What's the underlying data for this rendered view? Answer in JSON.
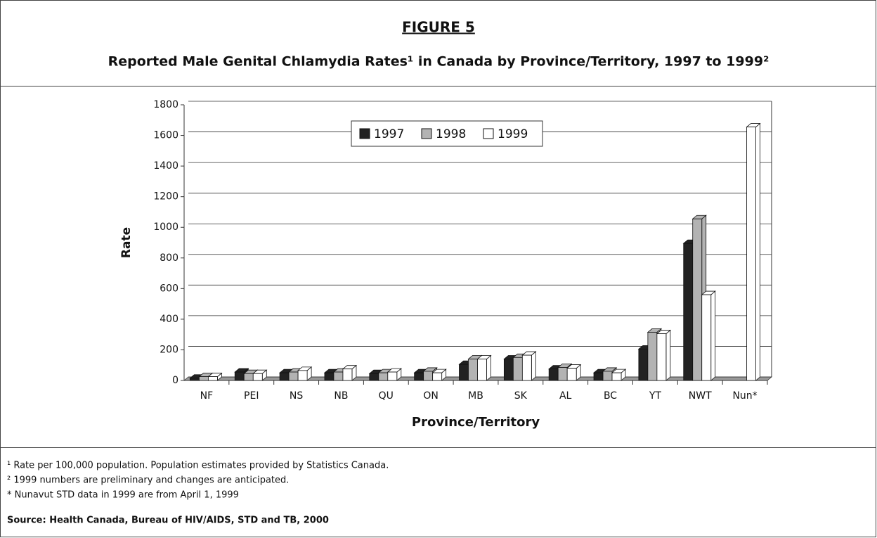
{
  "chart_data": {
    "type": "bar3d",
    "figure_label": "FIGURE 5",
    "title": "Reported Male Genital Chlamydia Rates¹ in Canada by Province/Territory, 1997 to 1999²",
    "y_label": "Rate",
    "x_label": "Province/Territory",
    "categories": [
      "NF",
      "PEI",
      "NS",
      "NB",
      "QU",
      "ON",
      "MB",
      "SK",
      "AL",
      "BC",
      "YT",
      "NWT",
      "Nun*"
    ],
    "series": [
      {
        "name": "1997",
        "color": "#222222",
        "values": [
          15,
          55,
          50,
          50,
          45,
          50,
          105,
          140,
          75,
          50,
          205,
          895,
          null
        ]
      },
      {
        "name": "1998",
        "color": "#b3b3b3",
        "values": [
          25,
          45,
          55,
          55,
          50,
          60,
          140,
          150,
          85,
          60,
          315,
          1055,
          null
        ]
      },
      {
        "name": "1999",
        "color": "#ffffff",
        "values": [
          25,
          45,
          65,
          75,
          55,
          50,
          140,
          165,
          80,
          50,
          305,
          560,
          1655
        ]
      }
    ],
    "ylim": [
      0,
      1800
    ],
    "yticks": [
      0,
      200,
      400,
      600,
      800,
      1000,
      1200,
      1400,
      1600,
      1800
    ],
    "grid": true,
    "legend": "top",
    "footnotes": [
      "¹ Rate per 100,000 population. Population estimates provided by Statistics Canada.",
      "² 1999 numbers are preliminary and changes are anticipated.",
      "* Nunavut STD data in 1999 are from April 1, 1999"
    ],
    "source": "Source: Health Canada, Bureau of HIV/AIDS, STD and TB, 2000"
  }
}
